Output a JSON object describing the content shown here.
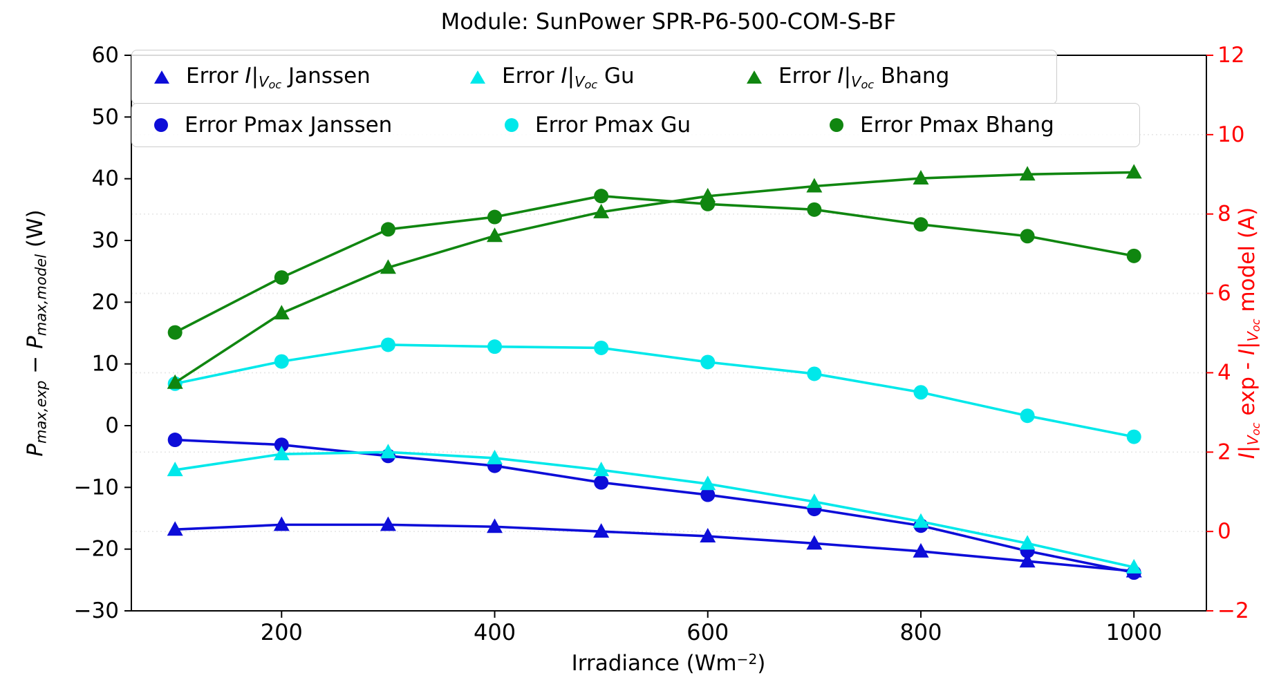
{
  "title": "Module: SunPower SPR-P6-500-COM-S-BF",
  "chart_data": {
    "type": "line",
    "x": [
      100,
      200,
      300,
      400,
      500,
      600,
      700,
      800,
      900,
      1000
    ],
    "xlim": [
      59,
      1068
    ],
    "x_ticks": [
      200,
      400,
      600,
      800,
      1000
    ],
    "x_label_tokens": [
      {
        "t": "Irradiance (Wm"
      },
      {
        "t": "−2",
        "sup": 1
      },
      {
        "t": ")"
      }
    ],
    "left_axis": {
      "lim": [
        -30,
        60
      ],
      "ticks": [
        60,
        50,
        40,
        30,
        20,
        10,
        0,
        -10,
        -20,
        -30
      ],
      "color": "#000000",
      "label_tokens": [
        {
          "t": "P",
          "i": 1
        },
        {
          "t": "max,exp",
          "i": 1,
          "sub": 1
        },
        {
          "t": " − ",
          "i": 1
        },
        {
          "t": "P",
          "i": 1
        },
        {
          "t": "max,model",
          "i": 1,
          "sub": 1
        },
        {
          "t": " (W)"
        }
      ]
    },
    "right_axis": {
      "lim": [
        -2,
        12
      ],
      "ticks": [
        12,
        10,
        8,
        6,
        4,
        2,
        0,
        -2
      ],
      "color": "#ff0000",
      "label_tokens": [
        {
          "t": "I",
          "i": 1
        },
        {
          "t": "|"
        },
        {
          "t": "V",
          "i": 1,
          "sub": 1
        },
        {
          "t": "oc",
          "i": 1,
          "sub": 2
        },
        {
          "t": " exp - "
        },
        {
          "t": "I",
          "i": 1
        },
        {
          "t": "|"
        },
        {
          "t": "V",
          "i": 1,
          "sub": 1
        },
        {
          "t": "oc",
          "i": 1,
          "sub": 2
        },
        {
          "t": " model (A)"
        }
      ]
    },
    "grid": {
      "axis": "right",
      "style": "dotted",
      "color": "#e8e8e8"
    },
    "series": [
      {
        "name": "Error I|V_oc Janssen",
        "axis": "right",
        "marker": "triangle",
        "color": "#0d0dd8",
        "values": [
          0.05,
          0.17,
          0.17,
          0.12,
          0.0,
          -0.12,
          -0.3,
          -0.5,
          -0.75,
          -1.0
        ]
      },
      {
        "name": "Error Pmax Janssen",
        "axis": "left",
        "marker": "circle",
        "color": "#0d0dd8",
        "values": [
          -2.3,
          -3.1,
          -4.9,
          -6.5,
          -9.2,
          -11.2,
          -13.5,
          -16.2,
          -20.3,
          -23.8
        ]
      },
      {
        "name": "Error I|V_oc Gu",
        "axis": "right",
        "marker": "triangle",
        "color": "#00e8ea",
        "values": [
          1.55,
          1.95,
          2.0,
          1.85,
          1.55,
          1.2,
          0.75,
          0.25,
          -0.3,
          -0.9
        ]
      },
      {
        "name": "Error Pmax Gu",
        "axis": "left",
        "marker": "circle",
        "color": "#00e8ea",
        "values": [
          6.8,
          10.4,
          13.1,
          12.8,
          12.6,
          10.3,
          8.4,
          5.4,
          1.6,
          -1.8
        ]
      },
      {
        "name": "Error I|V_oc Bhang",
        "axis": "right",
        "marker": "triangle",
        "color": "#108610",
        "values": [
          3.75,
          5.5,
          6.65,
          7.45,
          8.05,
          8.45,
          8.7,
          8.9,
          9.0,
          9.05
        ]
      },
      {
        "name": "Error Pmax Bhang",
        "axis": "left",
        "marker": "circle",
        "color": "#108610",
        "values": [
          15.1,
          24.0,
          31.8,
          33.8,
          37.2,
          35.9,
          35.0,
          32.6,
          30.7,
          27.5
        ]
      }
    ],
    "legend": {
      "rows": [
        {
          "items": [
            {
              "marker": "triangle",
              "color": "#0d0dd8",
              "label_tokens": [
                {
                  "t": "Error "
                },
                {
                  "t": "I",
                  "i": 1
                },
                {
                  "t": "|"
                },
                {
                  "t": "V",
                  "i": 1,
                  "sub": 1
                },
                {
                  "t": "oc",
                  "i": 1,
                  "sub": 2
                },
                {
                  "t": " Janssen"
                }
              ]
            },
            {
              "marker": "triangle",
              "color": "#00e8ea",
              "label_tokens": [
                {
                  "t": "Error "
                },
                {
                  "t": "I",
                  "i": 1
                },
                {
                  "t": "|"
                },
                {
                  "t": "V",
                  "i": 1,
                  "sub": 1
                },
                {
                  "t": "oc",
                  "i": 1,
                  "sub": 2
                },
                {
                  "t": " Gu"
                }
              ]
            },
            {
              "marker": "triangle",
              "color": "#108610",
              "label_tokens": [
                {
                  "t": "Error "
                },
                {
                  "t": "I",
                  "i": 1
                },
                {
                  "t": "|"
                },
                {
                  "t": "V",
                  "i": 1,
                  "sub": 1
                },
                {
                  "t": "oc",
                  "i": 1,
                  "sub": 2
                },
                {
                  "t": " Bhang"
                }
              ]
            }
          ]
        },
        {
          "items": [
            {
              "marker": "circle",
              "color": "#0d0dd8",
              "label_tokens": [
                {
                  "t": "Error Pmax Janssen"
                }
              ]
            },
            {
              "marker": "circle",
              "color": "#00e8ea",
              "label_tokens": [
                {
                  "t": "Error Pmax Gu"
                }
              ]
            },
            {
              "marker": "circle",
              "color": "#108610",
              "label_tokens": [
                {
                  "t": "Error Pmax Bhang"
                }
              ]
            }
          ]
        }
      ]
    }
  }
}
